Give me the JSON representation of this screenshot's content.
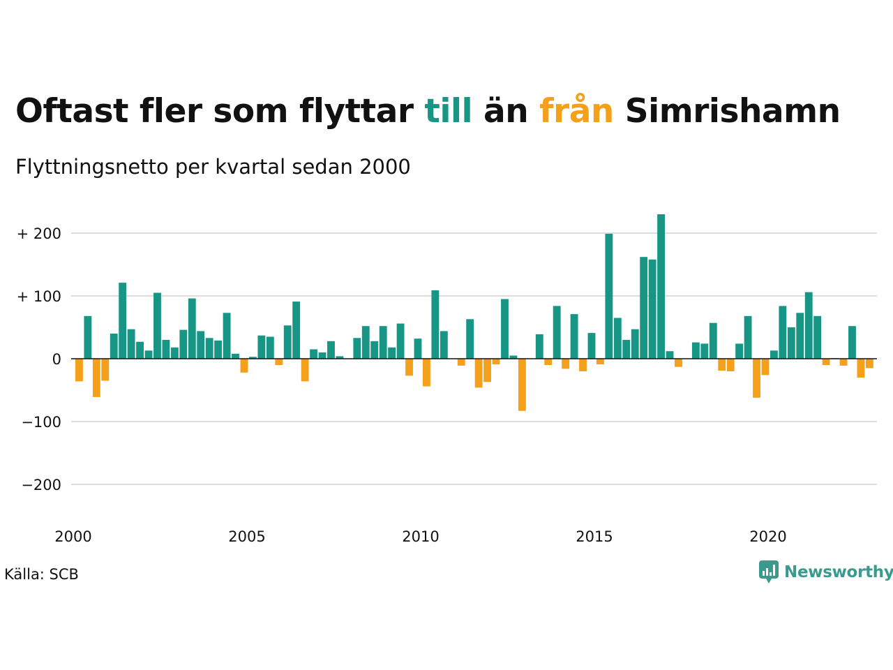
{
  "title": {
    "part1": "Oftast fler som flyttar ",
    "part2": "till",
    "part3": " än ",
    "part4": "från",
    "part5": " Simrishamn"
  },
  "subtitle": "Flyttningsnetto per kvartal sedan 2000",
  "source": "Källa: SCB",
  "brand": {
    "name": "Newsworthy",
    "icon": "newsworthy-logo-icon"
  },
  "colors": {
    "positive": "#179585",
    "negative": "#f5a01a",
    "grid": "#dddddd",
    "zero": "#111111",
    "brand": "#3a9a8e"
  },
  "chart_data": {
    "type": "bar",
    "title": "Oftast fler som flyttar till än från Simrishamn",
    "subtitle": "Flyttningsnetto per kvartal sedan 2000",
    "ylim": [
      -200,
      240
    ],
    "yticks": [
      200,
      100,
      0,
      -100,
      -200
    ],
    "ytick_labels": [
      "+ 200",
      "+ 100",
      "0",
      "−100",
      "−200"
    ],
    "xticks": [
      2000,
      2005,
      2010,
      2015,
      2020
    ],
    "grid": true,
    "start_year": 2000,
    "values": [
      -36,
      68,
      -61,
      -35,
      40,
      121,
      47,
      27,
      13,
      105,
      30,
      18,
      46,
      96,
      44,
      33,
      29,
      73,
      8,
      -22,
      3,
      37,
      35,
      -10,
      53,
      91,
      -36,
      15,
      10,
      28,
      4,
      0,
      33,
      52,
      28,
      52,
      18,
      56,
      -27,
      32,
      -44,
      109,
      44,
      0,
      -11,
      63,
      -46,
      -37,
      -9,
      95,
      5,
      -83,
      0,
      39,
      -10,
      84,
      -16,
      71,
      -20,
      41,
      -9,
      199,
      65,
      30,
      47,
      162,
      158,
      230,
      12,
      -13,
      0,
      26,
      24,
      57,
      -19,
      -20,
      24,
      68,
      -62,
      -26,
      13,
      84,
      50,
      73,
      106,
      68,
      -10,
      1,
      -11,
      52,
      -30,
      -15
    ]
  }
}
